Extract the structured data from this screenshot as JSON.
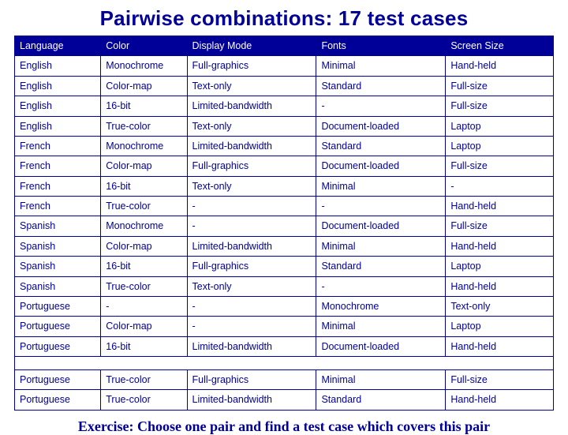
{
  "title": "Pairwise combinations: 17 test cases",
  "exercise": "Exercise: Choose one pair and find a test case which covers this pair",
  "table": {
    "type": "table",
    "header_bg": "#000099",
    "header_text_color": "#ffffff",
    "cell_text_color": "#000099",
    "border_color": "#000099",
    "background_color": "#ffffff",
    "header_fontsize": 12.5,
    "cell_fontsize": 12.5,
    "column_widths_pct": [
      16,
      16,
      24,
      24,
      20
    ],
    "columns": [
      "Language",
      "Color",
      "Display Mode",
      "Fonts",
      "Screen Size"
    ],
    "rows": [
      [
        "English",
        "Monochrome",
        "Full-graphics",
        "Minimal",
        "Hand-held"
      ],
      [
        "English",
        "Color-map",
        "Text-only",
        "Standard",
        "Full-size"
      ],
      [
        "English",
        "16-bit",
        "Limited-bandwidth",
        "-",
        "Full-size"
      ],
      [
        "English",
        "True-color",
        "Text-only",
        "Document-loaded",
        "Laptop"
      ],
      [
        "French",
        "Monochrome",
        "Limited-bandwidth",
        "Standard",
        "Laptop"
      ],
      [
        "French",
        "Color-map",
        "Full-graphics",
        "Document-loaded",
        "Full-size"
      ],
      [
        "French",
        "16-bit",
        "Text-only",
        "Minimal",
        "-"
      ],
      [
        "French",
        "True-color",
        "-",
        "-",
        "Hand-held"
      ],
      [
        "Spanish",
        "Monochrome",
        "-",
        "Document-loaded",
        "Full-size"
      ],
      [
        "Spanish",
        "Color-map",
        "Limited-bandwidth",
        "Minimal",
        "Hand-held"
      ],
      [
        "Spanish",
        "16-bit",
        "Full-graphics",
        "Standard",
        "Laptop"
      ],
      [
        "Spanish",
        "True-color",
        "Text-only",
        "-",
        "Hand-held"
      ],
      [
        "Portuguese",
        "-",
        "-",
        "Monochrome",
        "Text-only"
      ],
      [
        "Portuguese",
        "Color-map",
        "-",
        "Minimal",
        "Laptop"
      ],
      [
        "Portuguese",
        "16-bit",
        "Limited-bandwidth",
        "Document-loaded",
        "Hand-held"
      ],
      [
        "Portuguese",
        "True-color",
        "Full-graphics",
        "Minimal",
        "Full-size"
      ],
      [
        "Portuguese",
        "True-color",
        "Limited-bandwidth",
        "Standard",
        "Hand-held"
      ]
    ],
    "gap_after_row_index": 14
  }
}
